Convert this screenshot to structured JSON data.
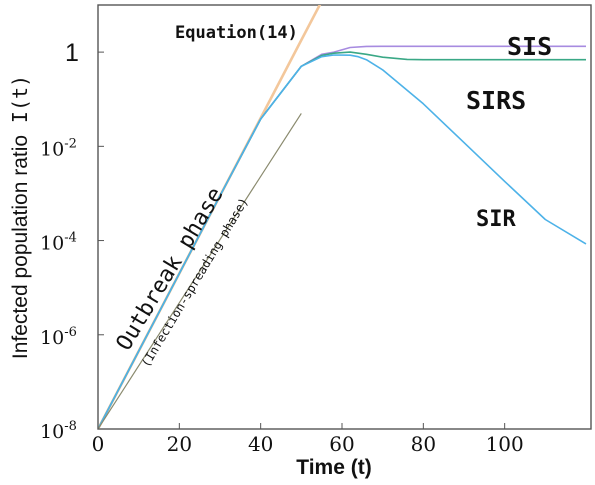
{
  "chart_data": {
    "type": "line",
    "title": "",
    "xlabel": "Time (t)",
    "ylabel_main": "Infected population ratio",
    "ylabel_symbol": "I(t)",
    "xlim": [
      0,
      120
    ],
    "ylim_log10": [
      -8,
      1
    ],
    "y_scale": "log",
    "grid": false,
    "x_ticks": [
      {
        "value": 0,
        "label": "0"
      },
      {
        "value": 20,
        "label": "20"
      },
      {
        "value": 40,
        "label": "40"
      },
      {
        "value": 60,
        "label": "60"
      },
      {
        "value": 80,
        "label": "80"
      },
      {
        "value": 100,
        "label": "100"
      }
    ],
    "y_ticks": [
      {
        "log10": -8,
        "base": "10",
        "exp": "-8",
        "label": "10^-8"
      },
      {
        "log10": -6,
        "base": "10",
        "exp": "-6",
        "label": "10^-6"
      },
      {
        "log10": -4,
        "base": "10",
        "exp": "-4",
        "label": "10^-4"
      },
      {
        "log10": -2,
        "base": "10",
        "exp": "-2",
        "label": "10^-2"
      },
      {
        "log10": 0,
        "base": "1",
        "exp": "",
        "label": "1"
      }
    ],
    "series": [
      {
        "name": "Equation(14)",
        "color": "#f3c79b",
        "x": [
          0,
          10,
          20,
          30,
          40,
          50,
          60,
          65
        ],
        "y": [
          1e-08,
          4.5e-07,
          2e-05,
          0.00089,
          0.04,
          1.8,
          80,
          550
        ]
      },
      {
        "name": "SIS",
        "color": "#a78be0",
        "x": [
          0,
          10,
          20,
          30,
          40,
          50,
          55,
          58,
          62,
          66,
          70,
          80,
          90,
          100,
          110,
          120
        ],
        "y": [
          1e-08,
          4.5e-07,
          2e-05,
          0.00089,
          0.038,
          0.5,
          0.9,
          1.0,
          1.25,
          1.32,
          1.33,
          1.33,
          1.33,
          1.33,
          1.33,
          1.33
        ]
      },
      {
        "name": "SIRS",
        "color": "#3aa886",
        "x": [
          0,
          10,
          20,
          30,
          40,
          50,
          55,
          58,
          62,
          66,
          70,
          76,
          80,
          90,
          100,
          110,
          120
        ],
        "y": [
          1e-08,
          4.5e-07,
          2e-05,
          0.00089,
          0.038,
          0.5,
          0.85,
          0.95,
          1.0,
          0.9,
          0.78,
          0.7,
          0.69,
          0.69,
          0.69,
          0.69,
          0.69
        ]
      },
      {
        "name": "SIR",
        "color": "#4db2e8",
        "x": [
          0,
          10,
          20,
          30,
          40,
          50,
          55,
          58,
          62,
          64,
          66,
          70,
          80,
          90,
          100,
          110,
          120
        ],
        "y": [
          1e-08,
          4.5e-07,
          2e-05,
          0.00089,
          0.038,
          0.5,
          0.8,
          0.87,
          0.86,
          0.8,
          0.69,
          0.42,
          0.08,
          0.012,
          0.0018,
          0.00028,
          8.5e-05
        ]
      },
      {
        "name": "Outbreak phase guide",
        "color": "#8a8a6e",
        "x": [
          0,
          50
        ],
        "y": [
          1e-08,
          0.05
        ]
      }
    ],
    "annotations": {
      "equation": "Equation(14)",
      "sis": "SIS",
      "sirs": "SIRS",
      "sir": "SIR",
      "phase_main": "Outbreak phase",
      "phase_sub": "(Infection-spreading phase)"
    }
  }
}
